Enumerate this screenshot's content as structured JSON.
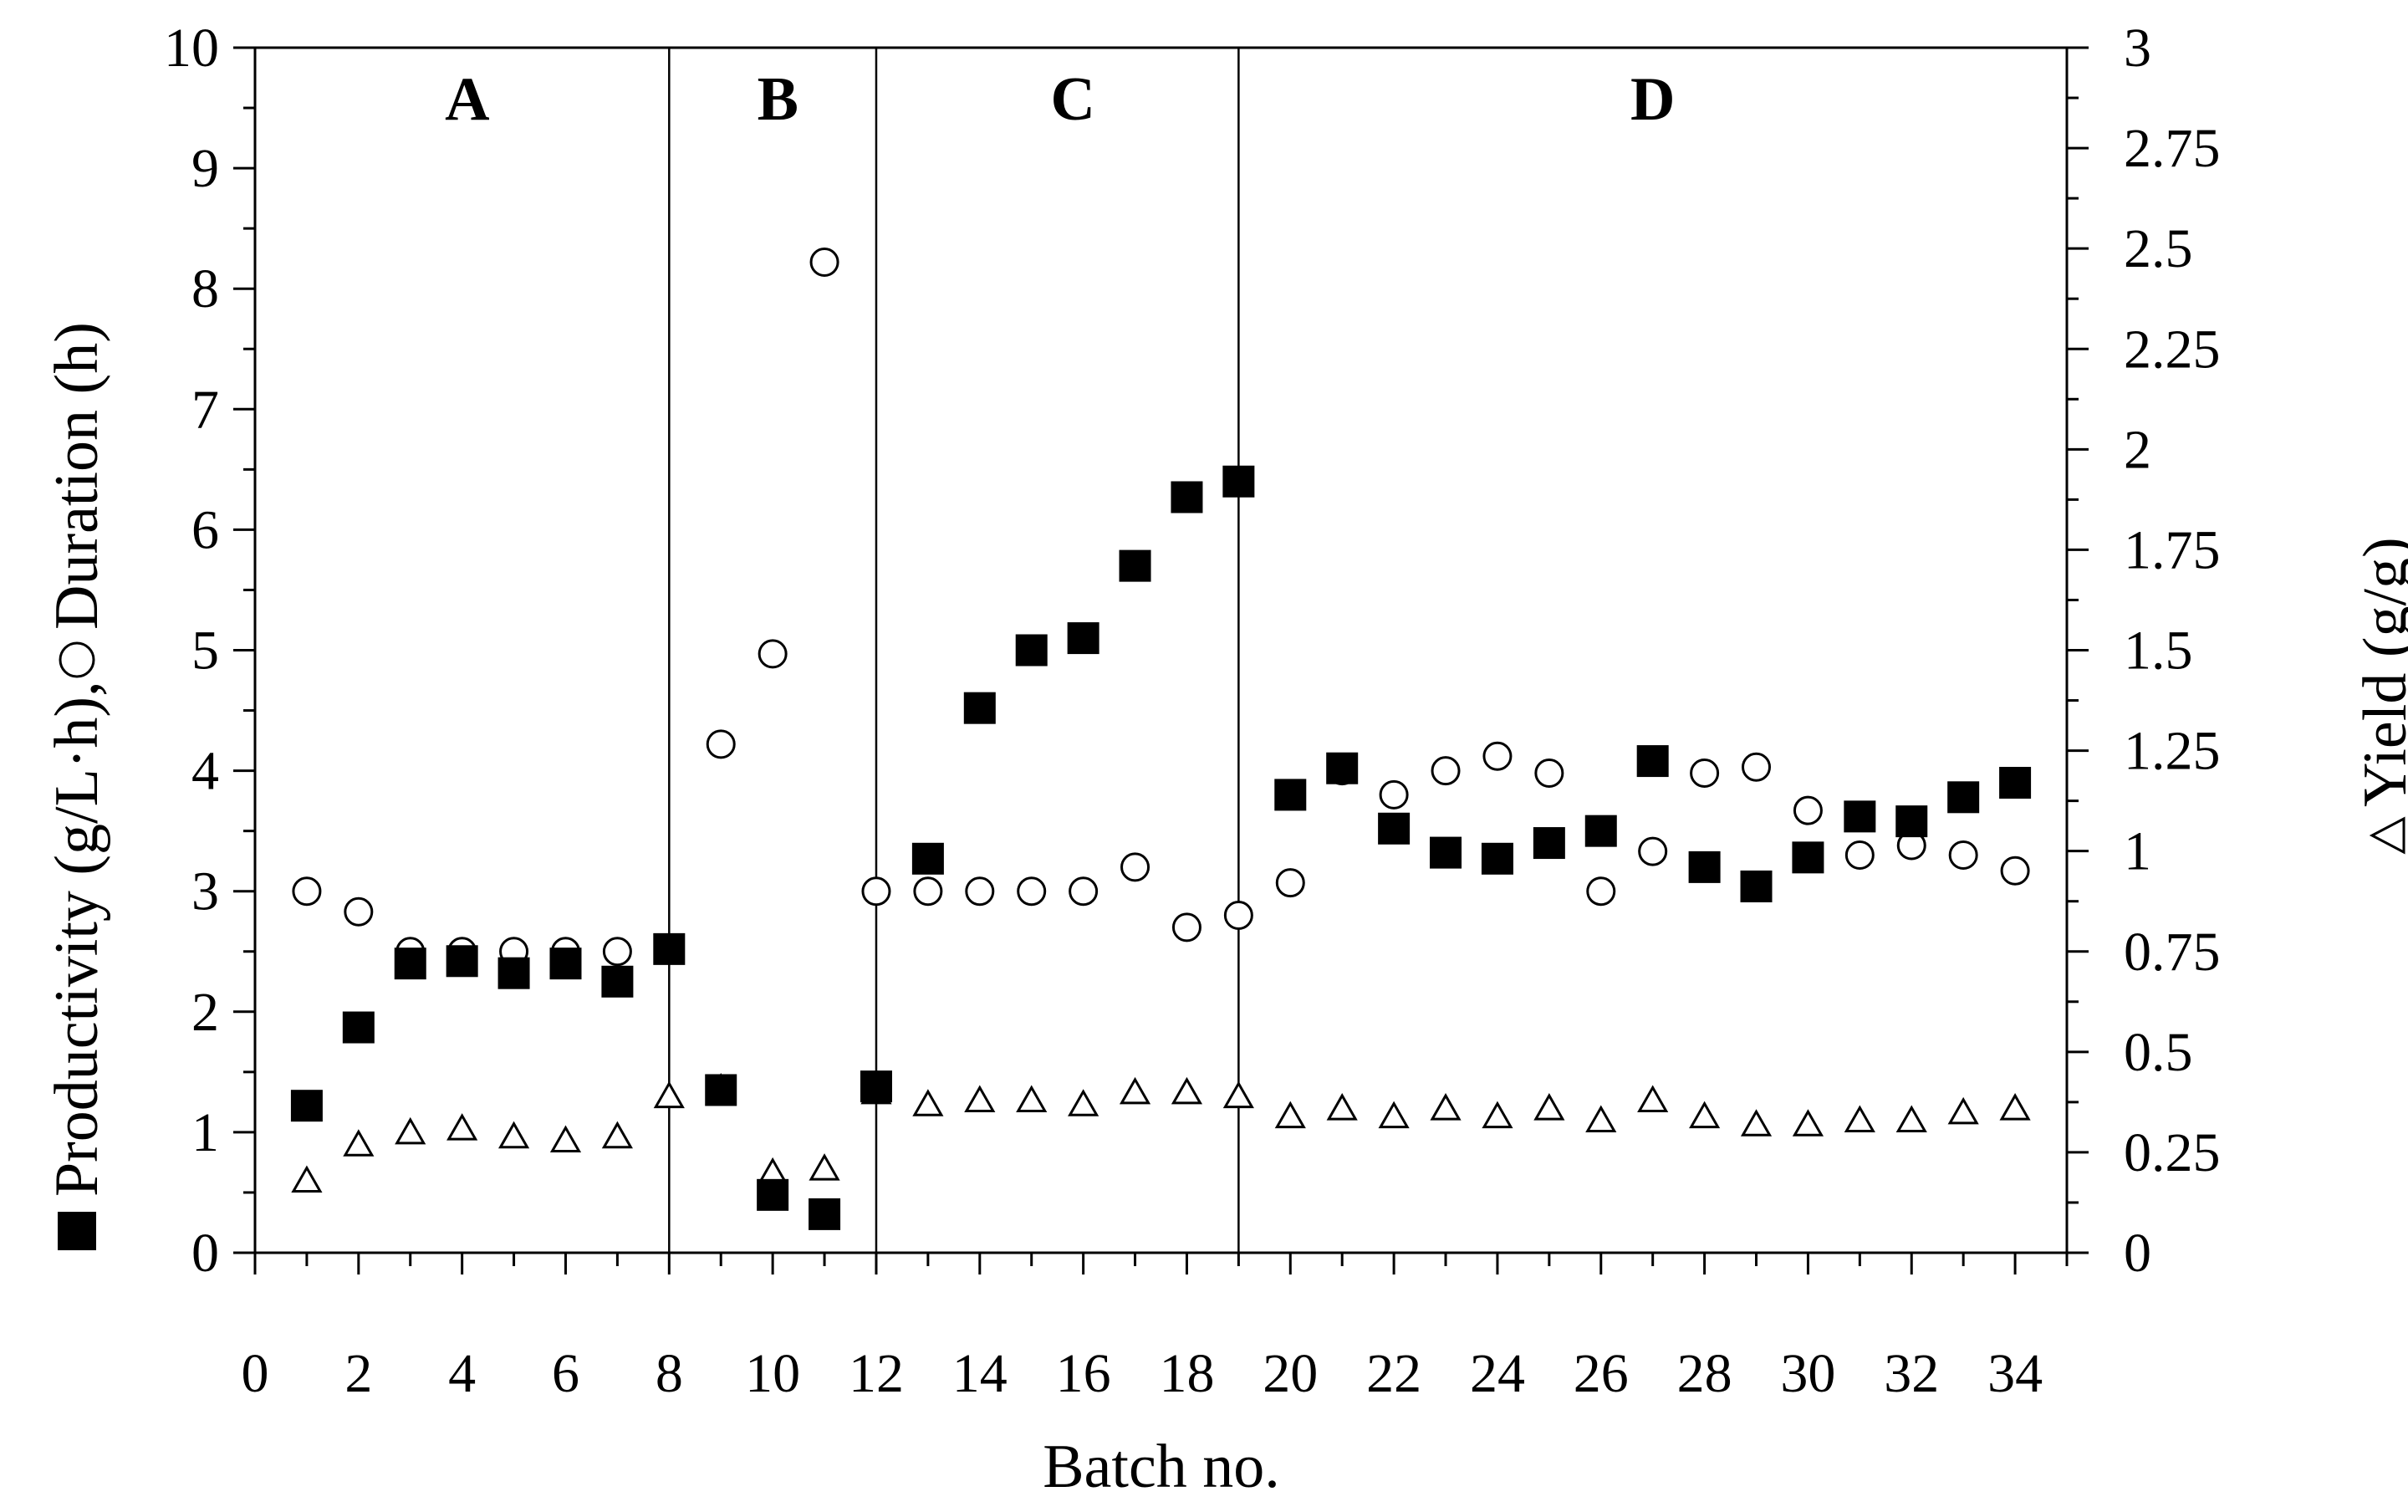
{
  "chart_data": {
    "type": "scatter",
    "xlabel": "Batch no.",
    "ylabel_left": {
      "series1_symbol": "square",
      "series1_text": "Productivity (g/L·h),",
      "series2_symbol": "circle",
      "series2_text": "Duration (h)"
    },
    "ylabel_right": {
      "symbol": "triangle",
      "text": "Yield (g/g)"
    },
    "xlim": [
      0,
      35
    ],
    "ylim_left": [
      0,
      10
    ],
    "ylim_right": [
      0,
      3
    ],
    "x_ticks": [
      0,
      2,
      4,
      6,
      8,
      10,
      12,
      14,
      16,
      18,
      20,
      22,
      24,
      26,
      28,
      30,
      32,
      34
    ],
    "y_left_ticks": [
      0,
      1,
      2,
      3,
      4,
      5,
      6,
      7,
      8,
      9,
      10
    ],
    "y_right_ticks": [
      "0",
      "0.25",
      "0.5",
      "0.75",
      "1",
      "1.25",
      "1.5",
      "1.75",
      "2",
      "2.25",
      "2.5",
      "2.75",
      "3"
    ],
    "grid": false,
    "dividers": [
      8,
      12,
      19
    ],
    "sections": [
      {
        "label": "A",
        "x": 4.1
      },
      {
        "label": "B",
        "x": 10.1
      },
      {
        "label": "C",
        "x": 15.8
      },
      {
        "label": "D",
        "x": 27.0
      }
    ],
    "series": [
      {
        "name": "Productivity (g/L·h)",
        "axis": "left",
        "marker": "square",
        "color": "#000000",
        "points": [
          [
            1,
            1.22
          ],
          [
            2,
            1.87
          ],
          [
            3,
            2.4
          ],
          [
            4,
            2.42
          ],
          [
            5,
            2.32
          ],
          [
            6,
            2.4
          ],
          [
            7,
            2.25
          ],
          [
            8,
            2.52
          ],
          [
            9,
            1.35
          ],
          [
            10,
            0.48
          ],
          [
            11,
            0.32
          ],
          [
            12,
            1.38
          ],
          [
            13,
            3.27
          ],
          [
            14,
            4.52
          ],
          [
            15,
            5.0
          ],
          [
            16,
            5.1
          ],
          [
            17,
            5.7
          ],
          [
            18,
            6.27
          ],
          [
            19,
            6.4
          ],
          [
            20,
            3.8
          ],
          [
            21,
            4.02
          ],
          [
            22,
            3.52
          ],
          [
            23,
            3.32
          ],
          [
            24,
            3.27
          ],
          [
            25,
            3.4
          ],
          [
            26,
            3.5
          ],
          [
            27,
            4.08
          ],
          [
            28,
            3.2
          ],
          [
            29,
            3.04
          ],
          [
            30,
            3.28
          ],
          [
            31,
            3.62
          ],
          [
            32,
            3.58
          ],
          [
            33,
            3.78
          ],
          [
            34,
            3.9
          ]
        ]
      },
      {
        "name": "Duration (h)",
        "axis": "left",
        "marker": "circle",
        "color": "#000000",
        "points": [
          [
            1,
            3.0
          ],
          [
            2,
            2.83
          ],
          [
            3,
            2.5
          ],
          [
            4,
            2.5
          ],
          [
            5,
            2.5
          ],
          [
            6,
            2.5
          ],
          [
            7,
            2.5
          ],
          [
            9,
            4.22
          ],
          [
            10,
            4.97
          ],
          [
            11,
            8.22
          ],
          [
            12,
            3.0
          ],
          [
            13,
            3.0
          ],
          [
            14,
            3.0
          ],
          [
            15,
            3.0
          ],
          [
            16,
            3.0
          ],
          [
            17,
            3.2
          ],
          [
            18,
            2.7
          ],
          [
            19,
            2.8
          ],
          [
            20,
            3.07
          ],
          [
            21,
            4.0
          ],
          [
            22,
            3.8
          ],
          [
            23,
            4.0
          ],
          [
            24,
            4.12
          ],
          [
            25,
            3.98
          ],
          [
            26,
            3.0
          ],
          [
            27,
            3.33
          ],
          [
            28,
            3.98
          ],
          [
            29,
            4.03
          ],
          [
            30,
            3.67
          ],
          [
            31,
            3.3
          ],
          [
            32,
            3.38
          ],
          [
            33,
            3.3
          ],
          [
            34,
            3.17
          ]
        ]
      },
      {
        "name": "Yield (g/g)",
        "axis": "right",
        "marker": "triangle",
        "color": "#000000",
        "points": [
          [
            1,
            0.18
          ],
          [
            2,
            0.27
          ],
          [
            3,
            0.3
          ],
          [
            4,
            0.31
          ],
          [
            5,
            0.29
          ],
          [
            6,
            0.28
          ],
          [
            7,
            0.29
          ],
          [
            8,
            0.39
          ],
          [
            9,
            0.41
          ],
          [
            10,
            0.2
          ],
          [
            11,
            0.21
          ],
          [
            12,
            0.4
          ],
          [
            13,
            0.37
          ],
          [
            14,
            0.38
          ],
          [
            15,
            0.38
          ],
          [
            16,
            0.37
          ],
          [
            17,
            0.4
          ],
          [
            18,
            0.4
          ],
          [
            19,
            0.39
          ],
          [
            20,
            0.34
          ],
          [
            21,
            0.36
          ],
          [
            22,
            0.34
          ],
          [
            23,
            0.36
          ],
          [
            24,
            0.34
          ],
          [
            25,
            0.36
          ],
          [
            26,
            0.33
          ],
          [
            27,
            0.38
          ],
          [
            28,
            0.34
          ],
          [
            29,
            0.32
          ],
          [
            30,
            0.32
          ],
          [
            31,
            0.33
          ],
          [
            32,
            0.33
          ],
          [
            33,
            0.35
          ],
          [
            34,
            0.36
          ]
        ]
      }
    ]
  }
}
